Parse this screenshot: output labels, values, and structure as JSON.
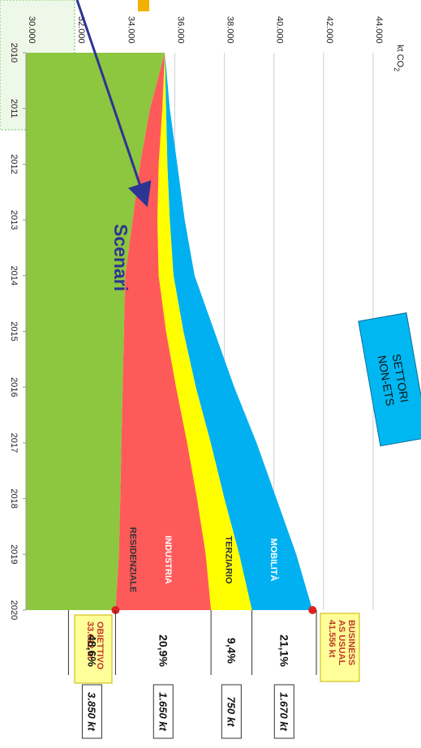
{
  "chart_data": {
    "type": "area",
    "orientation": "rotated-90-clockwise",
    "yunit": "kt CO",
    "yunit_sub": "2",
    "ylim": [
      30000,
      44000
    ],
    "yticks": [
      "30.000",
      "32.000",
      "34.000",
      "36.000",
      "38.000",
      "40.000",
      "42.000",
      "44.000"
    ],
    "ytick_values": [
      30000,
      32000,
      34000,
      36000,
      38000,
      40000,
      42000,
      44000
    ],
    "x": [
      "2010",
      "2011",
      "2012",
      "2013",
      "2014",
      "2015",
      "2016",
      "2017",
      "2018",
      "2019",
      "2020"
    ],
    "stacked_totals": {
      "residenziale": [
        35600,
        35000,
        34600,
        34300,
        34000,
        33950,
        33900,
        33850,
        33800,
        33750,
        33612
      ],
      "industria": [
        35600,
        35500,
        35350,
        35300,
        35350,
        35650,
        36050,
        36500,
        36900,
        37250,
        37462
      ],
      "terziario": [
        35600,
        35650,
        35700,
        35800,
        35950,
        36350,
        36850,
        37450,
        38000,
        38600,
        39112
      ],
      "mobilita": [
        35600,
        35800,
        36100,
        36400,
        36800,
        37600,
        38400,
        39300,
        40100,
        40900,
        41556
      ]
    },
    "series": [
      {
        "name": "RESIDENZIALE",
        "color": "#8dc63f"
      },
      {
        "name": "INDUSTRIA",
        "color": "#ff5a5a"
      },
      {
        "name": "TERZIARIO",
        "color": "#ffff00"
      },
      {
        "name": "MOBILITÀ",
        "color": "#00b0f0"
      }
    ],
    "grid": true,
    "shares": [
      {
        "pct": "21,1%",
        "kt": "1.670 kt"
      },
      {
        "pct": "9,4%",
        "kt": "750 kt"
      },
      {
        "pct": "20,9%",
        "kt": "1.650 kt"
      },
      {
        "pct": "48,6%",
        "kt": "3.850 kt"
      }
    ],
    "annotations": {
      "scenari": "Scenari",
      "settori_line1": "SETTORI",
      "settori_line2": "NON-ETS",
      "bau_line1": "BUSINESS",
      "bau_line2": "AS USUAL",
      "bau_line3": "41.556 kt",
      "bau_value": 41556,
      "obiettivo_line1": "OBIETTIVO",
      "obiettivo_line2": "33.612 kt",
      "obiettivo_value": 33612
    }
  }
}
